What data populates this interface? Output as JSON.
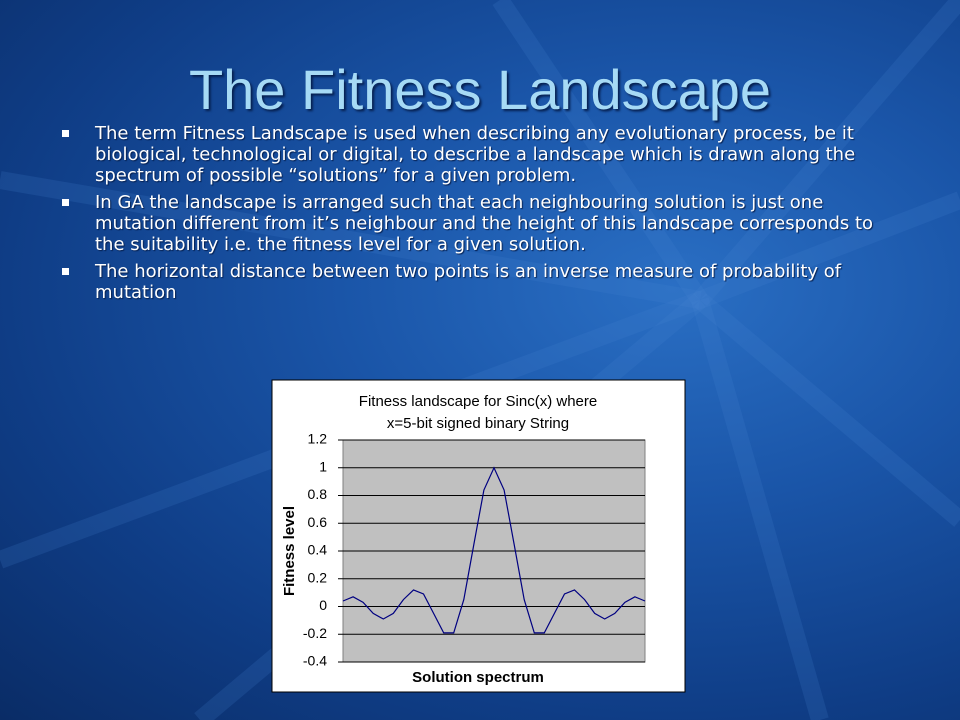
{
  "title": "The Fitness Landscape",
  "bullets": [
    "The term Fitness Landscape is used when describing any evolutionary process, be it biological, technological or digital, to describe a landscape which is drawn along the spectrum of possible “solutions” for a given problem.",
    "In GA the landscape is arranged such that each neighbouring solution is just one mutation different from it’s neighbour and the height of this landscape corresponds to the suitability i.e. the fitness level for a given solution.",
    "The horizontal distance between two points is an inverse measure of probability of mutation"
  ],
  "chart_data": {
    "type": "line",
    "title": [
      "Fitness landscape for Sinc(x) where",
      "x=5-bit signed binary String"
    ],
    "x_label": "Solution spectrum",
    "y_label": "Fitness level",
    "values": [
      0.04,
      0.07,
      0.03,
      -0.05,
      -0.09,
      -0.05,
      0.05,
      0.12,
      0.09,
      -0.05,
      -0.19,
      -0.19,
      0.05,
      0.45,
      0.84,
      1,
      0.84,
      0.45,
      0.05,
      -0.19,
      -0.19,
      -0.05,
      0.09,
      0.12,
      0.05,
      -0.05,
      -0.09,
      -0.05,
      0.03,
      0.07,
      0.04
    ],
    "color": "#000080",
    "ylim": [
      -0.4,
      1.2
    ],
    "yticks": [
      -0.4,
      -0.2,
      0,
      0.2,
      0.4,
      0.6,
      0.8,
      1,
      1.2
    ],
    "grid": true
  }
}
